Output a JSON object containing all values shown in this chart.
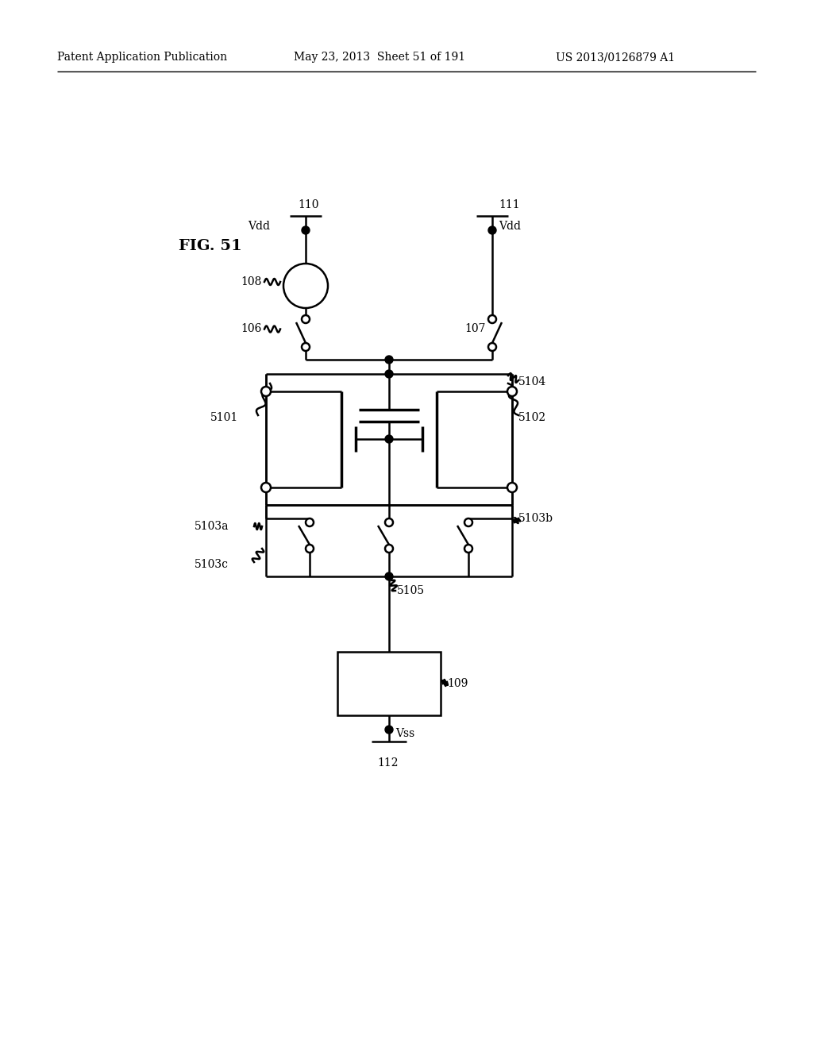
{
  "title": "FIG. 51",
  "header_left": "Patent Application Publication",
  "header_center": "May 23, 2013  Sheet 51 of 191",
  "header_right": "US 2013/0126879 A1",
  "bg_color": "#ffffff",
  "figsize": [
    10.24,
    13.2
  ],
  "dpi": 100
}
